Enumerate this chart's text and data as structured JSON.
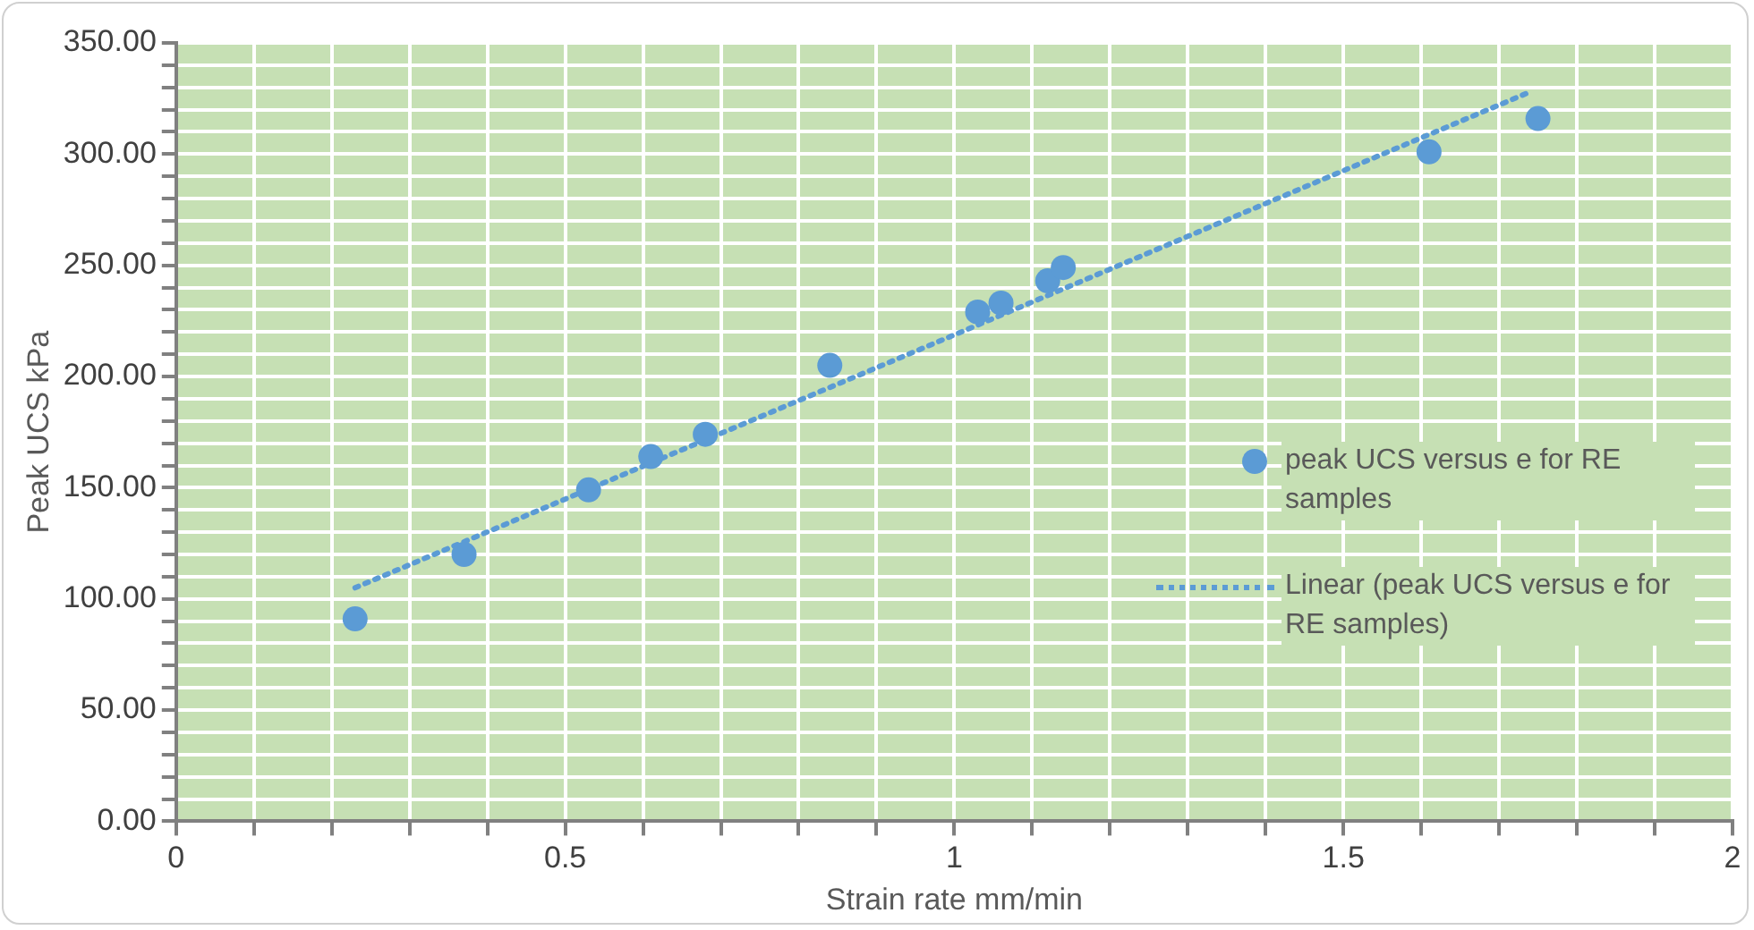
{
  "chart_data": {
    "type": "scatter",
    "xlabel": "Strain rate mm/min",
    "ylabel": "Peak UCS kPa",
    "xlim": [
      0,
      2
    ],
    "xticks": [
      0,
      {
        "value": 0.1,
        "label": null
      },
      {
        "value": 0.2,
        "label": null
      },
      {
        "value": 0.3,
        "label": null
      },
      {
        "value": 0.4,
        "label": null
      },
      0.5,
      {
        "value": 0.6,
        "label": null
      },
      {
        "value": 0.7,
        "label": null
      },
      {
        "value": 0.8,
        "label": null
      },
      {
        "value": 0.9,
        "label": null
      },
      1,
      {
        "value": 1.1,
        "label": null
      },
      {
        "value": 1.2,
        "label": null
      },
      {
        "value": 1.3,
        "label": null
      },
      {
        "value": 1.4,
        "label": null
      },
      1.5,
      {
        "value": 1.6,
        "label": null
      },
      {
        "value": 1.7,
        "label": null
      },
      {
        "value": 1.8,
        "label": null
      },
      {
        "value": 1.9,
        "label": null
      },
      2
    ],
    "ylim": [
      0,
      350
    ],
    "yticks": [
      {
        "value": 0,
        "label": "0.00"
      },
      {
        "value": 10,
        "label": null
      },
      {
        "value": 20,
        "label": null
      },
      {
        "value": 30,
        "label": null
      },
      {
        "value": 40,
        "label": null
      },
      {
        "value": 50,
        "label": "50.00"
      },
      {
        "value": 60,
        "label": null
      },
      {
        "value": 70,
        "label": null
      },
      {
        "value": 80,
        "label": null
      },
      {
        "value": 90,
        "label": null
      },
      {
        "value": 100,
        "label": "100.00"
      },
      {
        "value": 110,
        "label": null
      },
      {
        "value": 120,
        "label": null
      },
      {
        "value": 130,
        "label": null
      },
      {
        "value": 140,
        "label": null
      },
      {
        "value": 150,
        "label": "150.00"
      },
      {
        "value": 160,
        "label": null
      },
      {
        "value": 170,
        "label": null
      },
      {
        "value": 180,
        "label": null
      },
      {
        "value": 190,
        "label": null
      },
      {
        "value": 200,
        "label": "200.00"
      },
      {
        "value": 210,
        "label": null
      },
      {
        "value": 220,
        "label": null
      },
      {
        "value": 230,
        "label": null
      },
      {
        "value": 240,
        "label": null
      },
      {
        "value": 250,
        "label": "250.00"
      },
      {
        "value": 260,
        "label": null
      },
      {
        "value": 270,
        "label": null
      },
      {
        "value": 280,
        "label": null
      },
      {
        "value": 290,
        "label": null
      },
      {
        "value": 300,
        "label": "300.00"
      },
      {
        "value": 310,
        "label": null
      },
      {
        "value": 320,
        "label": null
      },
      {
        "value": 330,
        "label": null
      },
      {
        "value": 340,
        "label": null
      },
      {
        "value": 350,
        "label": "350.00"
      }
    ],
    "grid": true,
    "legend": "right",
    "series": [
      {
        "name": "peak UCS versus e for RE samples",
        "type": "scatter",
        "color": "#5b9bd5",
        "marker": "circle",
        "x": [
          0.23,
          0.37,
          0.53,
          0.61,
          0.68,
          0.84,
          1.03,
          1.06,
          1.12,
          1.14,
          1.61,
          1.75
        ],
        "values": [
          91,
          120,
          149,
          164,
          174,
          205,
          229,
          233,
          243,
          249,
          301,
          316
        ]
      },
      {
        "name": "Linear (peak UCS versus e for RE samples)",
        "type": "line",
        "color": "#5b9bd5",
        "marker": "none",
        "line_style": "dotted",
        "x": [
          0.23,
          1.74
        ],
        "values": [
          105,
          328
        ]
      }
    ]
  }
}
